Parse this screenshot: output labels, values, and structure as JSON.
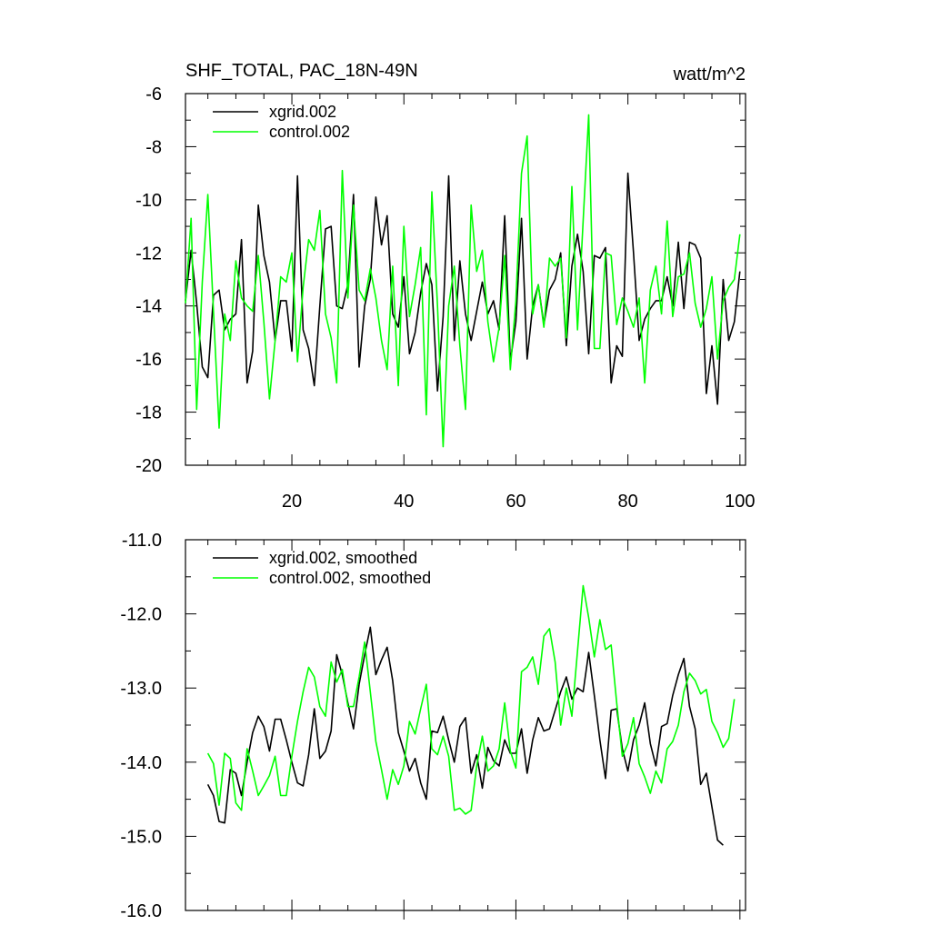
{
  "figure": {
    "title_left": "SHF_TOTAL, PAC_18N-49N",
    "title_right": "watt/m^2"
  },
  "chart_data": [
    {
      "type": "line",
      "title": "SHF_TOTAL, PAC_18N-49N",
      "units": "watt/m^2",
      "xlim": [
        1,
        101
      ],
      "ylim": [
        -20,
        -6
      ],
      "x_ticks": [
        20,
        40,
        60,
        80,
        100
      ],
      "y_ticks": [
        -20,
        -18,
        -16,
        -14,
        -12,
        -10,
        -8,
        -6
      ],
      "x_tick_labels": [
        "20",
        "40",
        "60",
        "80",
        "100"
      ],
      "y_tick_labels": [
        "-20",
        "-18",
        "-16",
        "-14",
        "-12",
        "-10",
        "-8",
        "-6"
      ],
      "legend_position": "top-left",
      "x_start": 1,
      "series": [
        {
          "name": "xgrid.002",
          "color": "#000000",
          "values": [
            -13.8,
            -11.9,
            -13.9,
            -16.3,
            -16.7,
            -13.6,
            -13.4,
            -14.9,
            -14.5,
            -14.3,
            -11.5,
            -16.9,
            -15.7,
            -10.2,
            -12.1,
            -13.1,
            -15.3,
            -13.8,
            -13.8,
            -15.7,
            -9.1,
            -14.9,
            -15.6,
            -17.0,
            -14.0,
            -11.1,
            -11.0,
            -14.0,
            -14.1,
            -13.2,
            -9.8,
            -16.3,
            -14.0,
            -13.0,
            -9.9,
            -11.7,
            -10.6,
            -14.3,
            -14.8,
            -12.9,
            -15.8,
            -15.0,
            -13.5,
            -12.4,
            -13.2,
            -17.2,
            -14.4,
            -9.1,
            -15.3,
            -12.3,
            -14.3,
            -15.3,
            -14.2,
            -13.1,
            -14.3,
            -13.8,
            -14.9,
            -10.6,
            -16.1,
            -14.6,
            -10.7,
            -16.0,
            -14.0,
            -13.2,
            -14.7,
            -13.4,
            -13.0,
            -12.0,
            -15.5,
            -12.5,
            -11.3,
            -12.7,
            -15.8,
            -12.1,
            -12.2,
            -11.8,
            -16.9,
            -15.5,
            -15.9,
            -9.0,
            -12.0,
            -15.3,
            -14.5,
            -14.1,
            -13.8,
            -13.8,
            -12.9,
            -14.0,
            -11.6,
            -14.1,
            -11.6,
            -11.7,
            -12.2,
            -17.3,
            -15.5,
            -17.7,
            -13.0,
            -15.3,
            -14.6,
            -12.7
          ]
        },
        {
          "name": "control.002",
          "color": "#00ff00",
          "values": [
            -13.9,
            -10.7,
            -17.9,
            -13.1,
            -9.8,
            -14.2,
            -18.6,
            -14.3,
            -15.3,
            -12.3,
            -13.7,
            -14.0,
            -14.2,
            -12.1,
            -14.6,
            -17.5,
            -15.3,
            -12.9,
            -13.1,
            -12.0,
            -16.1,
            -13.3,
            -11.5,
            -11.9,
            -10.4,
            -14.3,
            -15.2,
            -16.9,
            -8.9,
            -13.7,
            -10.2,
            -13.4,
            -13.8,
            -12.6,
            -13.7,
            -15.3,
            -16.4,
            -12.5,
            -17.0,
            -11.0,
            -14.4,
            -13.2,
            -11.8,
            -18.1,
            -9.7,
            -14.0,
            -19.3,
            -14.0,
            -12.5,
            -15.5,
            -17.9,
            -10.2,
            -12.7,
            -11.9,
            -14.6,
            -16.1,
            -14.8,
            -12.1,
            -16.4,
            -13.8,
            -9.0,
            -7.6,
            -14.3,
            -13.2,
            -14.8,
            -12.2,
            -12.5,
            -12.2,
            -15.2,
            -9.5,
            -14.9,
            -10.8,
            -6.8,
            -15.6,
            -15.6,
            -12.0,
            -12.1,
            -14.7,
            -13.7,
            -14.2,
            -14.8,
            -13.7,
            -16.9,
            -13.4,
            -12.5,
            -14.3,
            -10.8,
            -14.4,
            -12.9,
            -12.8,
            -12.0,
            -13.9,
            -14.8,
            -14.1,
            -12.9,
            -16.0,
            -13.8,
            -13.3,
            -13.0,
            -11.3
          ]
        }
      ]
    },
    {
      "type": "line",
      "xlim": [
        1,
        101
      ],
      "ylim": [
        -16.0,
        -11.0
      ],
      "x_ticks": [
        20,
        40,
        60,
        80,
        100
      ],
      "y_ticks": [
        -16.0,
        -15.0,
        -14.0,
        -13.0,
        -12.0,
        -11.0
      ],
      "y_tick_labels": [
        "-16.0",
        "-15.0",
        "-14.0",
        "-13.0",
        "-12.0",
        "-11.0"
      ],
      "legend_position": "top-left",
      "x_start": 5,
      "series": [
        {
          "name": "xgrid.002, smoothed",
          "color": "#000000",
          "values": [
            -14.3,
            -14.45,
            -14.8,
            -14.82,
            -14.1,
            -14.15,
            -14.45,
            -14.0,
            -13.6,
            -13.38,
            -13.52,
            -13.85,
            -13.42,
            -13.42,
            -13.7,
            -14.0,
            -14.28,
            -14.32,
            -13.9,
            -13.28,
            -13.95,
            -13.85,
            -13.58,
            -12.55,
            -12.82,
            -13.2,
            -13.55,
            -12.95,
            -12.55,
            -12.18,
            -12.82,
            -12.62,
            -12.45,
            -12.9,
            -13.6,
            -13.85,
            -14.12,
            -13.95,
            -14.28,
            -14.5,
            -13.58,
            -13.6,
            -13.38,
            -13.7,
            -14.0,
            -13.52,
            -13.4,
            -14.15,
            -13.9,
            -14.35,
            -13.8,
            -13.98,
            -14.05,
            -13.7,
            -13.88,
            -13.88,
            -13.55,
            -14.15,
            -13.7,
            -13.4,
            -13.58,
            -13.55,
            -13.3,
            -13.05,
            -12.85,
            -13.15,
            -13.0,
            -13.05,
            -12.52,
            -13.1,
            -13.7,
            -14.22,
            -13.3,
            -13.28,
            -13.82,
            -14.12,
            -13.7,
            -13.5,
            -13.2,
            -13.75,
            -14.05,
            -13.52,
            -13.48,
            -13.1,
            -12.82,
            -12.6,
            -13.25,
            -13.55,
            -14.3,
            -14.15,
            -14.6,
            -15.05,
            -15.12
          ]
        },
        {
          "name": "control.002, smoothed",
          "color": "#00ff00",
          "values": [
            -13.88,
            -14.02,
            -14.58,
            -13.88,
            -13.95,
            -14.55,
            -14.65,
            -13.82,
            -14.12,
            -14.45,
            -14.32,
            -14.18,
            -13.92,
            -14.45,
            -14.45,
            -13.92,
            -13.45,
            -13.05,
            -12.72,
            -12.85,
            -13.25,
            -13.38,
            -12.65,
            -12.92,
            -12.75,
            -13.25,
            -13.25,
            -12.85,
            -12.38,
            -13.05,
            -13.72,
            -14.1,
            -14.5,
            -14.1,
            -14.3,
            -14.05,
            -13.45,
            -13.62,
            -13.28,
            -12.95,
            -13.82,
            -13.9,
            -13.65,
            -13.92,
            -14.65,
            -14.62,
            -14.7,
            -14.65,
            -14.05,
            -13.65,
            -14.12,
            -14.05,
            -13.82,
            -13.2,
            -13.85,
            -14.08,
            -12.78,
            -12.72,
            -12.58,
            -12.95,
            -12.3,
            -12.2,
            -12.65,
            -13.5,
            -13.0,
            -13.38,
            -12.5,
            -11.62,
            -12.05,
            -12.58,
            -12.08,
            -12.48,
            -12.42,
            -13.2,
            -13.92,
            -13.75,
            -13.4,
            -14.02,
            -14.2,
            -14.42,
            -14.12,
            -14.28,
            -13.82,
            -13.72,
            -13.5,
            -13.05,
            -12.8,
            -12.9,
            -13.08,
            -13.02,
            -13.45,
            -13.6,
            -13.8,
            -13.68,
            -13.15
          ]
        }
      ]
    }
  ]
}
